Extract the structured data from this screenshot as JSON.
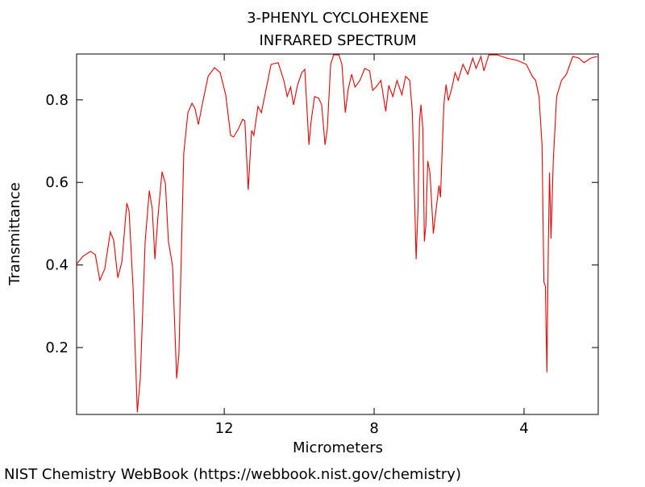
{
  "chart_data": {
    "type": "line",
    "title": "3-PHENYL CYCLOHEXENE",
    "subtitle": "INFRARED SPECTRUM",
    "x_label": "Micrometers",
    "y_label": "Transmittance",
    "source": "NIST Chemistry WebBook (https://webbook.nist.gov/chemistry)",
    "color": "#ee0000",
    "xlim": [
      15.94,
      2.02
    ],
    "ylim": [
      0.038,
      0.911
    ],
    "xticks": [
      12,
      8,
      4
    ],
    "yticks": [
      0.2,
      0.4,
      0.6,
      0.8
    ],
    "x": [
      15.94,
      15.77,
      15.57,
      15.44,
      15.32,
      15.19,
      15.04,
      14.95,
      14.84,
      14.73,
      14.6,
      14.54,
      14.43,
      14.32,
      14.24,
      14.11,
      14.0,
      13.92,
      13.85,
      13.77,
      13.66,
      13.57,
      13.49,
      13.38,
      13.27,
      13.21,
      13.08,
      12.97,
      12.86,
      12.78,
      12.69,
      12.58,
      12.43,
      12.26,
      12.11,
      11.96,
      11.83,
      11.75,
      11.62,
      11.51,
      11.45,
      11.36,
      11.27,
      11.21,
      11.1,
      11.01,
      10.88,
      10.75,
      10.56,
      10.41,
      10.32,
      10.23,
      10.15,
      10.04,
      9.93,
      9.85,
      9.74,
      9.68,
      9.59,
      9.48,
      9.4,
      9.31,
      9.25,
      9.16,
      9.08,
      8.94,
      8.86,
      8.77,
      8.69,
      8.6,
      8.51,
      8.38,
      8.25,
      8.12,
      8.04,
      7.95,
      7.82,
      7.69,
      7.61,
      7.5,
      7.39,
      7.26,
      7.16,
      7.05,
      6.98,
      6.92,
      6.88,
      6.83,
      6.79,
      6.75,
      6.7,
      6.66,
      6.62,
      6.57,
      6.51,
      6.42,
      6.36,
      6.27,
      6.23,
      6.14,
      6.08,
      6.02,
      5.93,
      5.84,
      5.76,
      5.63,
      5.5,
      5.37,
      5.28,
      5.15,
      5.07,
      4.94,
      4.72,
      4.46,
      4.2,
      3.94,
      3.78,
      3.69,
      3.6,
      3.52,
      3.47,
      3.43,
      3.39,
      3.35,
      3.32,
      3.28,
      3.22,
      3.13,
      3.0,
      2.87,
      2.7,
      2.53,
      2.4,
      2.22,
      2.05
    ],
    "values": [
      0.402,
      0.421,
      0.433,
      0.425,
      0.363,
      0.39,
      0.48,
      0.46,
      0.369,
      0.408,
      0.55,
      0.531,
      0.34,
      0.043,
      0.125,
      0.457,
      0.58,
      0.535,
      0.414,
      0.516,
      0.626,
      0.597,
      0.457,
      0.398,
      0.125,
      0.183,
      0.671,
      0.769,
      0.792,
      0.779,
      0.74,
      0.792,
      0.857,
      0.878,
      0.866,
      0.812,
      0.714,
      0.71,
      0.73,
      0.753,
      0.749,
      0.582,
      0.726,
      0.714,
      0.784,
      0.769,
      0.827,
      0.886,
      0.89,
      0.847,
      0.808,
      0.831,
      0.788,
      0.837,
      0.866,
      0.874,
      0.691,
      0.749,
      0.808,
      0.804,
      0.788,
      0.691,
      0.73,
      0.886,
      0.909,
      0.909,
      0.886,
      0.769,
      0.827,
      0.862,
      0.831,
      0.847,
      0.876,
      0.87,
      0.823,
      0.831,
      0.847,
      0.772,
      0.835,
      0.808,
      0.847,
      0.812,
      0.857,
      0.847,
      0.769,
      0.554,
      0.414,
      0.535,
      0.749,
      0.788,
      0.73,
      0.457,
      0.496,
      0.652,
      0.623,
      0.476,
      0.525,
      0.593,
      0.564,
      0.788,
      0.837,
      0.798,
      0.827,
      0.866,
      0.847,
      0.886,
      0.862,
      0.901,
      0.876,
      0.905,
      0.87,
      0.909,
      0.909,
      0.901,
      0.896,
      0.886,
      0.857,
      0.847,
      0.808,
      0.691,
      0.359,
      0.349,
      0.14,
      0.457,
      0.624,
      0.464,
      0.652,
      0.808,
      0.847,
      0.862,
      0.905,
      0.901,
      0.89,
      0.901,
      0.905
    ]
  }
}
